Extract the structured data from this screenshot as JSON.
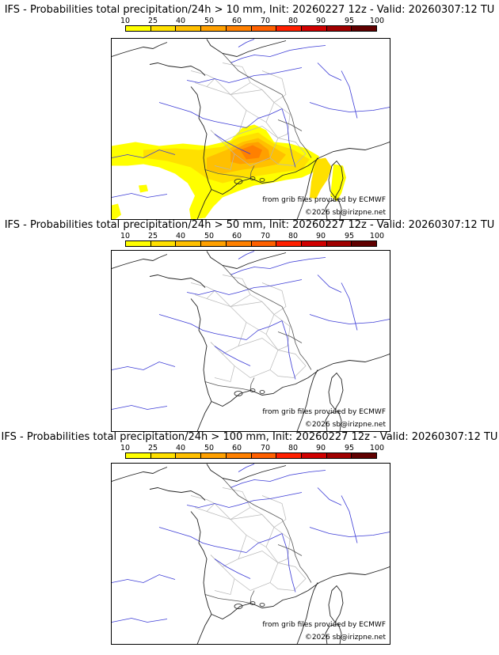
{
  "colorbar": {
    "ticks": [
      "10",
      "25",
      "40",
      "50",
      "60",
      "70",
      "80",
      "90",
      "95",
      "100"
    ],
    "colors": [
      "#ffff00",
      "#ffe000",
      "#ffc000",
      "#ffa000",
      "#ff8000",
      "#ff6000",
      "#ff2000",
      "#d00000",
      "#a00000",
      "#600000"
    ]
  },
  "panels": [
    {
      "title": "IFS - Probabilities total precipitation/24h > 10 mm, Init: 20260227 12z - Valid: 20260307:12 TU",
      "source": "from grib files provided by ECMWF",
      "copyright": "©2026 sb@irizpne.net",
      "shaded": true
    },
    {
      "title": "IFS - Probabilities total precipitation/24h > 50 mm, Init: 20260227 12z - Valid: 20260307:12 TU",
      "source": "from grib files provided by ECMWF",
      "copyright": "©2026 sb@irizpne.net",
      "shaded": false
    },
    {
      "title": "IFS - Probabilities total precipitation/24h > 100 mm, Init: 20260227 12z - Valid: 20260307:12 TU",
      "source": "from grib files provided by ECMWF",
      "copyright": "©2026 sb@irizpne.net",
      "shaded": false
    }
  ]
}
